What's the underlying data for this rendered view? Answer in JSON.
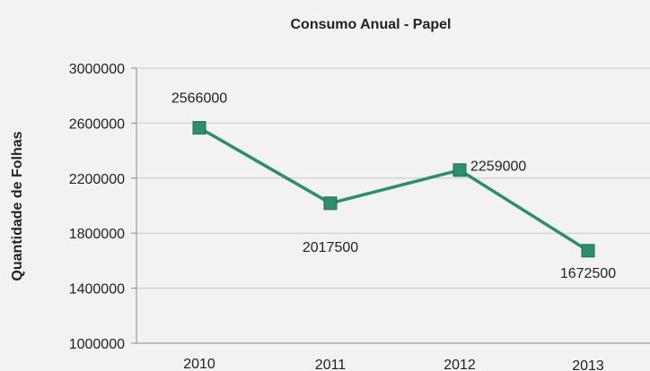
{
  "chart_data": {
    "type": "line",
    "title": "Consumo Anual - Papel",
    "xlabel": "",
    "ylabel": "Quantidade de Folhas",
    "categories": [
      "2010",
      "2011",
      "2012",
      "2013"
    ],
    "series": [
      {
        "values": [
          2566000,
          2017500,
          2259000,
          1672500
        ]
      }
    ],
    "data_labels": [
      "2566000",
      "2017500",
      "2259000",
      "1672500"
    ],
    "ylim": [
      1000000,
      3000000
    ],
    "yticks": [
      1000000,
      1400000,
      1800000,
      2200000,
      2600000,
      3000000
    ],
    "ytick_labels": [
      "1000000",
      "1400000",
      "1800000",
      "2200000",
      "2600000",
      "3000000"
    ],
    "grid": true,
    "legend": "none",
    "colors": {
      "series": "#2a8f6a",
      "marker": "#2a8f6a"
    }
  }
}
